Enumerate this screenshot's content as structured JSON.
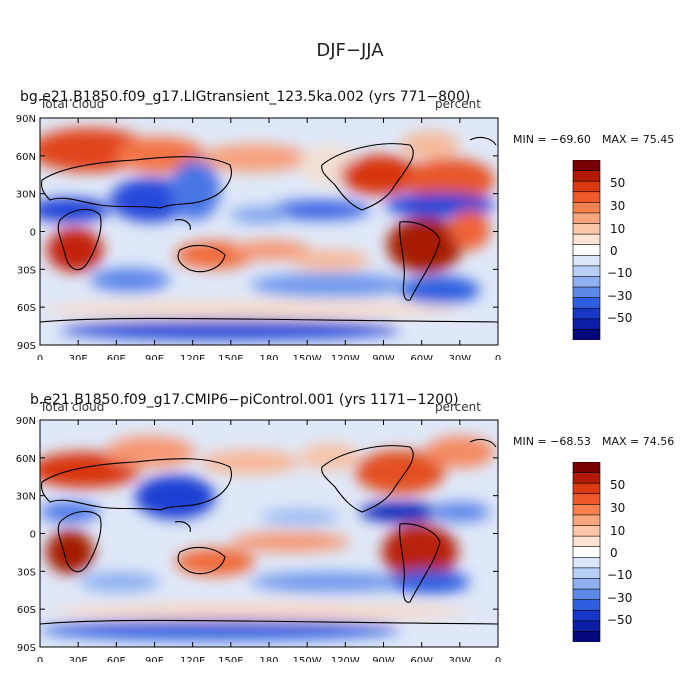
{
  "figure": {
    "title": "DJF−JJA"
  },
  "panels": [
    {
      "title": "bg.e21.B1850.f09_g17.LIGtransient_123.5ka.002 (yrs 771−800)",
      "variable": "Total cloud",
      "units": "percent",
      "min_label": "MIN = −69.60",
      "max_label": "MAX =  75.45"
    },
    {
      "title": "b.e21.B1850.f09_g17.CMIP6−piControl.001 (yrs 1171−1200)",
      "variable": "Total cloud",
      "units": "percent",
      "min_label": "MIN = −68.53",
      "max_label": "MAX =  74.56"
    }
  ],
  "axes": {
    "lat_labels": [
      "90N",
      "60N",
      "30N",
      "0",
      "30S",
      "60S",
      "90S"
    ],
    "lon_labels": [
      "0",
      "30E",
      "60E",
      "90E",
      "120E",
      "150E",
      "180",
      "150W",
      "120W",
      "90W",
      "60W",
      "30W",
      "0"
    ]
  },
  "colorbar": {
    "labels": [
      "50",
      "30",
      "10",
      "0",
      "−10",
      "−30",
      "−50"
    ],
    "colors": [
      "#7a0000",
      "#b21a00",
      "#d93a10",
      "#f05a28",
      "#f7824f",
      "#f9a67e",
      "#fbc7a8",
      "#fde4d2",
      "#ffffff",
      "#dbe6fb",
      "#b8cff5",
      "#8eb0f0",
      "#5d8ae9",
      "#2f5fe0",
      "#1637c8",
      "#0a1ea8",
      "#04087a"
    ]
  },
  "colors": {
    "strong_positive": "#c3240e",
    "positive": "#f26a3e",
    "weak_positive": "#fbc4a4",
    "neutral": "#fff4ec",
    "weak_negative": "#c9dbf7",
    "negative": "#6f97ec",
    "strong_negative": "#1c3fd3"
  }
}
